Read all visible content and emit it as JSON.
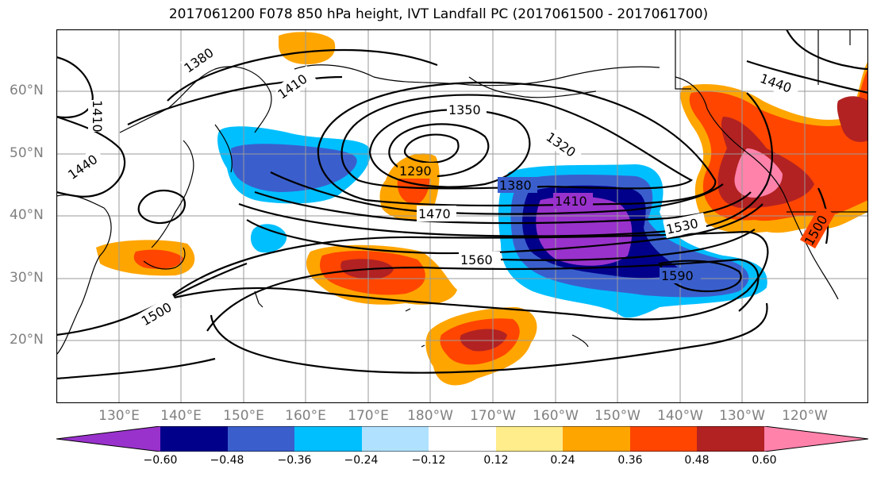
{
  "title": "2017061200 F078 850 hPa height, IVT Landfall PC (2017061500 - 2017061700)",
  "lat_labels": [
    "60°N",
    "50°N",
    "40°N",
    "30°N",
    "20°N"
  ],
  "lon_labels": [
    "130°E",
    "140°E",
    "150°E",
    "160°E",
    "170°E",
    "180°W",
    "170°W",
    "160°W",
    "150°W",
    "140°W",
    "130°W",
    "120°W"
  ],
  "contour_labels": [
    "1380",
    "1410",
    "1410",
    "1440",
    "1350",
    "1320",
    "1290",
    "1380",
    "1410",
    "1470",
    "1530",
    "1560",
    "1590",
    "1500",
    "1440",
    "1500"
  ],
  "colorbar": {
    "ticks": [
      "−0.60",
      "−0.48",
      "−0.36",
      "−0.24",
      "−0.12",
      "0.12",
      "0.24",
      "0.36",
      "0.48",
      "0.60"
    ],
    "colors": [
      "#9932cc",
      "#00008b",
      "#3a5fcd",
      "#00bfff",
      "#b0e2ff",
      "#ffffff",
      "#ffec8b",
      "#ffa500",
      "#ff4500",
      "#b22222",
      "#ff82ab"
    ]
  }
}
